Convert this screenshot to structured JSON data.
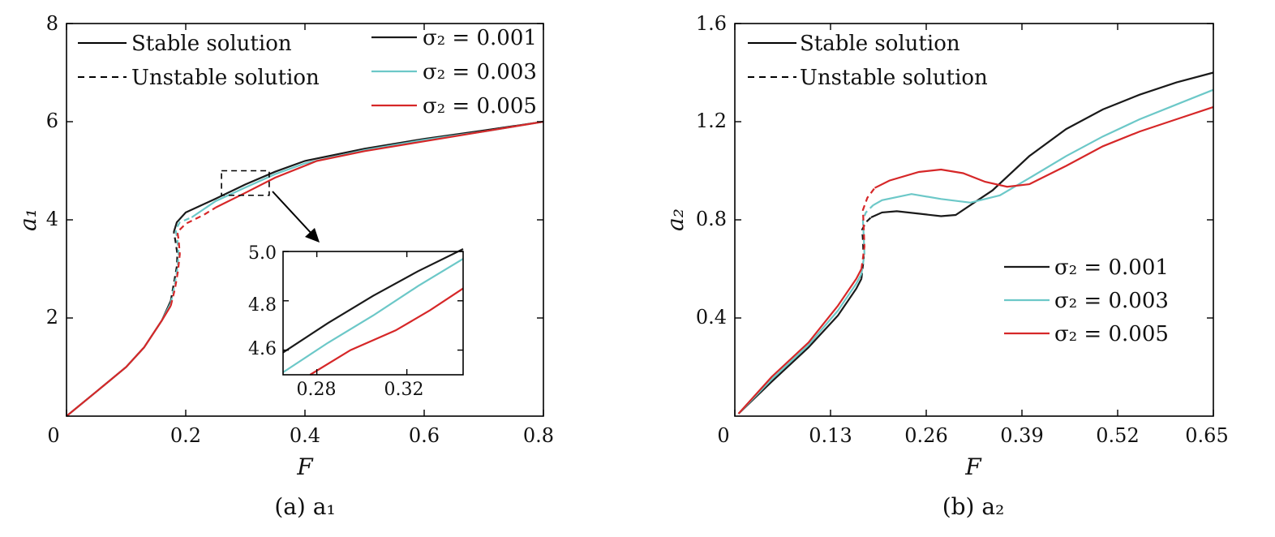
{
  "chart_data": [
    {
      "id": "a",
      "type": "line",
      "caption": "(a)  a₁",
      "xlabel": "F",
      "ylabel": "a₁",
      "xlim": [
        0,
        0.8
      ],
      "ylim": [
        0,
        8
      ],
      "x_ticks": [
        "0",
        "0.2",
        "0.4",
        "0.6",
        "0.8"
      ],
      "x_tick_values": [
        0,
        0.2,
        0.4,
        0.6,
        0.8
      ],
      "y_ticks": [
        "2",
        "4",
        "6",
        "8"
      ],
      "y_tick_values": [
        2,
        4,
        6,
        8
      ],
      "legend_style": [
        {
          "label": "Stable solution",
          "dash": "solid"
        },
        {
          "label": "Unstable solution",
          "dash": "dashed"
        }
      ],
      "legend_series": [
        {
          "label": "σ₂ = 0.001",
          "color": "#1a1a1a"
        },
        {
          "label": "σ₂ = 0.003",
          "color": "#6cc8c8"
        },
        {
          "label": "σ₂ = 0.005",
          "color": "#d62728"
        }
      ],
      "series": [
        {
          "name": "σ₂ = 0.001",
          "color": "#1a1a1a",
          "stable_lower": [
            [
              0,
              0
            ],
            [
              0.05,
              0.5
            ],
            [
              0.1,
              1.0
            ],
            [
              0.13,
              1.4
            ],
            [
              0.16,
              1.95
            ],
            [
              0.175,
              2.35
            ]
          ],
          "unstable": [
            [
              0.175,
              2.35
            ],
            [
              0.18,
              2.7
            ],
            [
              0.185,
              3.05
            ],
            [
              0.186,
              3.3
            ],
            [
              0.183,
              3.55
            ],
            [
              0.18,
              3.75
            ]
          ],
          "stable_upper": [
            [
              0.18,
              3.75
            ],
            [
              0.185,
              3.95
            ],
            [
              0.2,
              4.15
            ],
            [
              0.25,
              4.43
            ],
            [
              0.3,
              4.72
            ],
            [
              0.35,
              4.98
            ],
            [
              0.4,
              5.2
            ],
            [
              0.5,
              5.45
            ],
            [
              0.6,
              5.65
            ],
            [
              0.7,
              5.82
            ],
            [
              0.8,
              6.0
            ]
          ]
        },
        {
          "name": "σ₂ = 0.003",
          "color": "#6cc8c8",
          "stable_lower": [
            [
              0,
              0
            ],
            [
              0.05,
              0.5
            ],
            [
              0.1,
              1.0
            ],
            [
              0.13,
              1.4
            ],
            [
              0.16,
              1.95
            ],
            [
              0.175,
              2.3
            ]
          ],
          "unstable": [
            [
              0.175,
              2.3
            ],
            [
              0.181,
              2.65
            ],
            [
              0.186,
              3.0
            ],
            [
              0.188,
              3.3
            ],
            [
              0.186,
              3.6
            ],
            [
              0.183,
              3.8
            ],
            [
              0.19,
              3.95
            ],
            [
              0.21,
              4.05
            ]
          ],
          "stable_upper": [
            [
              0.21,
              4.05
            ],
            [
              0.25,
              4.38
            ],
            [
              0.3,
              4.66
            ],
            [
              0.35,
              4.93
            ],
            [
              0.4,
              5.15
            ],
            [
              0.5,
              5.42
            ],
            [
              0.6,
              5.63
            ],
            [
              0.7,
              5.8
            ],
            [
              0.8,
              6.0
            ]
          ]
        },
        {
          "name": "σ₂ = 0.005",
          "color": "#d62728",
          "stable_lower": [
            [
              0,
              0
            ],
            [
              0.05,
              0.5
            ],
            [
              0.1,
              1.0
            ],
            [
              0.13,
              1.4
            ],
            [
              0.16,
              1.95
            ],
            [
              0.175,
              2.25
            ]
          ],
          "unstable": [
            [
              0.175,
              2.25
            ],
            [
              0.182,
              2.6
            ],
            [
              0.187,
              2.95
            ],
            [
              0.19,
              3.3
            ],
            [
              0.188,
              3.6
            ],
            [
              0.186,
              3.75
            ],
            [
              0.2,
              3.92
            ],
            [
              0.23,
              4.1
            ],
            [
              0.25,
              4.25
            ]
          ],
          "stable_upper": [
            [
              0.25,
              4.25
            ],
            [
              0.3,
              4.55
            ],
            [
              0.35,
              4.86
            ],
            [
              0.42,
              5.2
            ],
            [
              0.5,
              5.4
            ],
            [
              0.6,
              5.6
            ],
            [
              0.7,
              5.8
            ],
            [
              0.8,
              6.0
            ]
          ]
        }
      ],
      "zoom_region": {
        "x": [
          0.26,
          0.34
        ],
        "y": [
          4.5,
          5.0
        ]
      },
      "inset": {
        "xlim": [
          0.265,
          0.345
        ],
        "ylim": [
          4.5,
          5.0
        ],
        "x_ticks": [
          "0.28",
          "0.32"
        ],
        "x_tick_values": [
          0.28,
          0.32
        ],
        "y_ticks": [
          "4.6",
          "4.8",
          "5.0"
        ],
        "y_tick_values": [
          4.6,
          4.8,
          5.0
        ],
        "series": [
          {
            "name": "σ₂ = 0.001",
            "color": "#1a1a1a",
            "points": [
              [
                0.265,
                4.59
              ],
              [
                0.285,
                4.71
              ],
              [
                0.305,
                4.82
              ],
              [
                0.325,
                4.92
              ],
              [
                0.345,
                5.01
              ]
            ]
          },
          {
            "name": "σ₂ = 0.003",
            "color": "#6cc8c8",
            "points": [
              [
                0.265,
                4.51
              ],
              [
                0.285,
                4.63
              ],
              [
                0.305,
                4.74
              ],
              [
                0.325,
                4.86
              ],
              [
                0.345,
                4.97
              ]
            ]
          },
          {
            "name": "σ₂ = 0.005",
            "color": "#d62728",
            "points": [
              [
                0.277,
                4.5
              ],
              [
                0.295,
                4.6
              ],
              [
                0.315,
                4.68
              ],
              [
                0.33,
                4.76
              ],
              [
                0.345,
                4.85
              ]
            ]
          }
        ]
      }
    },
    {
      "id": "b",
      "type": "line",
      "caption": "(b)  a₂",
      "xlabel": "F",
      "ylabel": "a₂",
      "xlim": [
        0,
        0.65
      ],
      "ylim": [
        0,
        1.6
      ],
      "x_ticks": [
        "0",
        "0.13",
        "0.26",
        "0.39",
        "0.52",
        "0.65"
      ],
      "x_tick_values": [
        0,
        0.13,
        0.26,
        0.39,
        0.52,
        0.65
      ],
      "y_ticks": [
        "0.4",
        "0.8",
        "1.2",
        "1.6"
      ],
      "y_tick_values": [
        0.4,
        0.8,
        1.2,
        1.6
      ],
      "legend_style": [
        {
          "label": "Stable solution",
          "dash": "solid"
        },
        {
          "label": "Unstable solution",
          "dash": "dashed"
        }
      ],
      "legend_series": [
        {
          "label": "σ₂ = 0.001",
          "color": "#1a1a1a"
        },
        {
          "label": "σ₂ = 0.003",
          "color": "#6cc8c8"
        },
        {
          "label": "σ₂ = 0.005",
          "color": "#d62728"
        }
      ],
      "series": [
        {
          "name": "σ₂ = 0.001",
          "color": "#1a1a1a",
          "stable_lower": [
            [
              0.005,
              0.01
            ],
            [
              0.05,
              0.14
            ],
            [
              0.1,
              0.28
            ],
            [
              0.14,
              0.41
            ],
            [
              0.165,
              0.52
            ],
            [
              0.172,
              0.56
            ]
          ],
          "unstable": [
            [
              0.172,
              0.56
            ],
            [
              0.175,
              0.64
            ],
            [
              0.174,
              0.72
            ],
            [
              0.173,
              0.76
            ],
            [
              0.178,
              0.79
            ],
            [
              0.185,
              0.81
            ]
          ],
          "stable_upper": [
            [
              0.185,
              0.81
            ],
            [
              0.2,
              0.83
            ],
            [
              0.22,
              0.835
            ],
            [
              0.25,
              0.825
            ],
            [
              0.28,
              0.815
            ],
            [
              0.3,
              0.82
            ],
            [
              0.35,
              0.92
            ],
            [
              0.4,
              1.06
            ],
            [
              0.45,
              1.17
            ],
            [
              0.5,
              1.25
            ],
            [
              0.55,
              1.31
            ],
            [
              0.6,
              1.36
            ],
            [
              0.65,
              1.4
            ]
          ]
        },
        {
          "name": "σ₂ = 0.003",
          "color": "#6cc8c8",
          "stable_lower": [
            [
              0.005,
              0.01
            ],
            [
              0.05,
              0.15
            ],
            [
              0.1,
              0.29
            ],
            [
              0.14,
              0.43
            ],
            [
              0.165,
              0.54
            ],
            [
              0.172,
              0.58
            ]
          ],
          "unstable": [
            [
              0.172,
              0.58
            ],
            [
              0.176,
              0.66
            ],
            [
              0.175,
              0.74
            ],
            [
              0.174,
              0.8
            ],
            [
              0.178,
              0.83
            ],
            [
              0.188,
              0.86
            ]
          ],
          "stable_upper": [
            [
              0.188,
              0.86
            ],
            [
              0.2,
              0.88
            ],
            [
              0.24,
              0.905
            ],
            [
              0.28,
              0.885
            ],
            [
              0.32,
              0.87
            ],
            [
              0.36,
              0.9
            ],
            [
              0.4,
              0.97
            ],
            [
              0.45,
              1.06
            ],
            [
              0.5,
              1.14
            ],
            [
              0.55,
              1.21
            ],
            [
              0.6,
              1.27
            ],
            [
              0.65,
              1.33
            ]
          ]
        },
        {
          "name": "σ₂ = 0.005",
          "color": "#d62728",
          "stable_lower": [
            [
              0.005,
              0.01
            ],
            [
              0.05,
              0.16
            ],
            [
              0.1,
              0.3
            ],
            [
              0.14,
              0.45
            ],
            [
              0.165,
              0.56
            ],
            [
              0.172,
              0.6
            ]
          ],
          "unstable": [
            [
              0.172,
              0.6
            ],
            [
              0.176,
              0.69
            ],
            [
              0.175,
              0.78
            ],
            [
              0.174,
              0.84
            ],
            [
              0.18,
              0.89
            ],
            [
              0.19,
              0.93
            ]
          ],
          "stable_upper": [
            [
              0.19,
              0.93
            ],
            [
              0.21,
              0.96
            ],
            [
              0.25,
              0.995
            ],
            [
              0.28,
              1.005
            ],
            [
              0.31,
              0.99
            ],
            [
              0.34,
              0.955
            ],
            [
              0.37,
              0.935
            ],
            [
              0.4,
              0.945
            ],
            [
              0.45,
              1.02
            ],
            [
              0.5,
              1.1
            ],
            [
              0.55,
              1.16
            ],
            [
              0.6,
              1.21
            ],
            [
              0.65,
              1.26
            ]
          ]
        }
      ]
    }
  ]
}
